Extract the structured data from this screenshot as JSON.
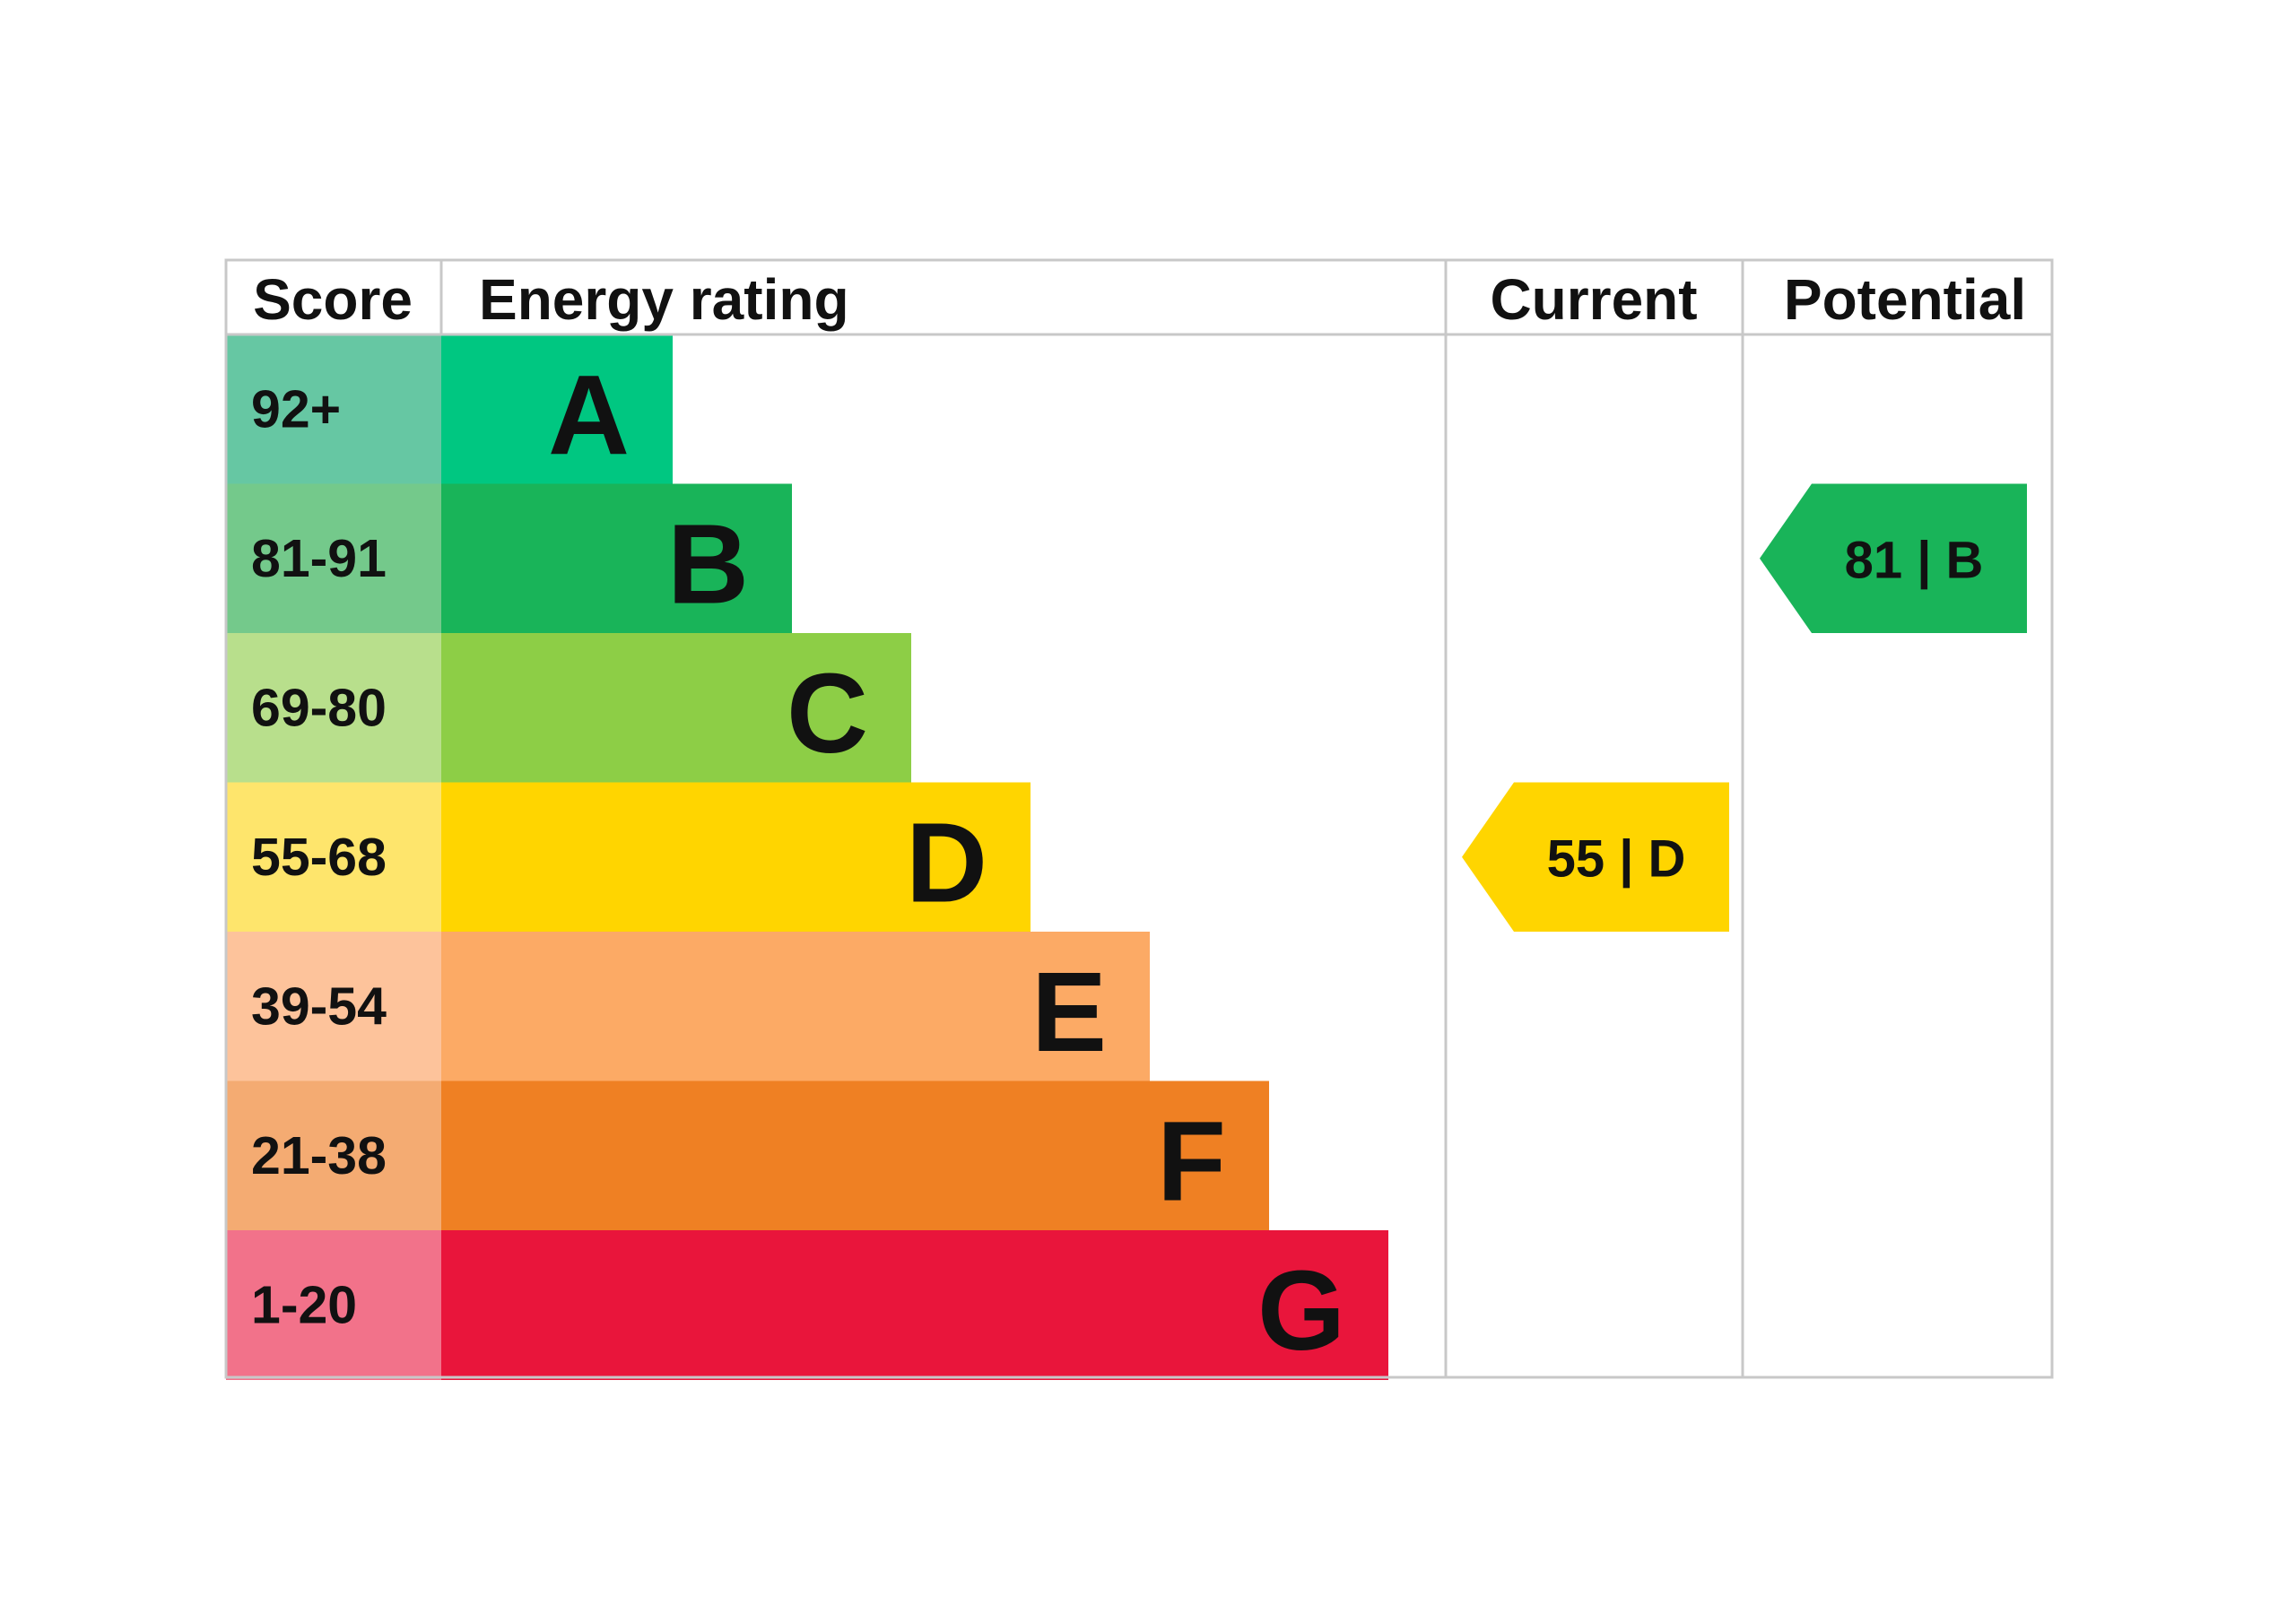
{
  "chart_data": {
    "type": "bar",
    "headers": {
      "score": "Score",
      "energy_rating": "Energy rating",
      "current": "Current",
      "potential": "Potential"
    },
    "bands": [
      {
        "range": "92+",
        "letter": "A",
        "color": "#00c781",
        "light": "#66c7a3"
      },
      {
        "range": "81-91",
        "letter": "B",
        "color": "#19b459",
        "light": "#74c98b"
      },
      {
        "range": "69-80",
        "letter": "C",
        "color": "#8dce46",
        "light": "#b8df8c"
      },
      {
        "range": "55-68",
        "letter": "D",
        "color": "#ffd500",
        "light": "#fee56c"
      },
      {
        "range": "39-54",
        "letter": "E",
        "color": "#fcaa65",
        "light": "#fdc39b"
      },
      {
        "range": "21-38",
        "letter": "F",
        "color": "#ef8023",
        "light": "#f4ab72"
      },
      {
        "range": "1-20",
        "letter": "G",
        "color": "#e9153b",
        "light": "#f2728a"
      }
    ],
    "current": {
      "score": 55,
      "band": "D",
      "label": "55 | D"
    },
    "potential": {
      "score": 81,
      "band": "B",
      "label": "81 | B"
    }
  }
}
